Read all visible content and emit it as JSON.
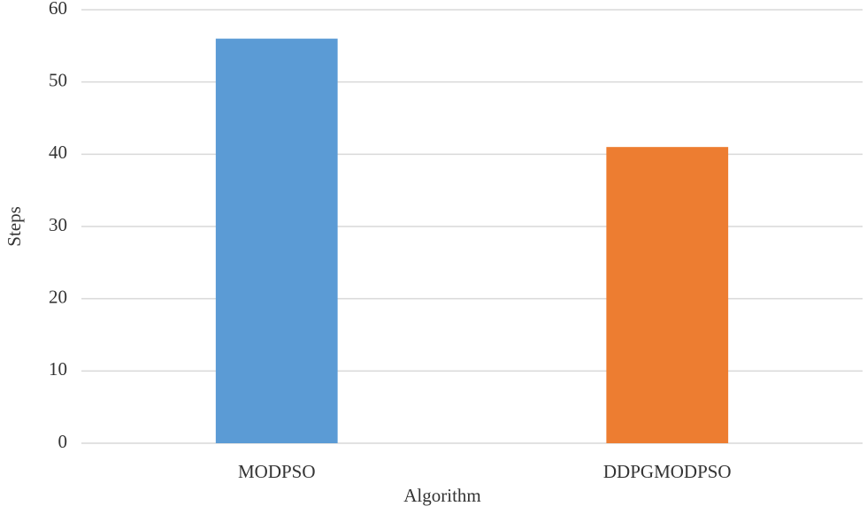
{
  "chart_data": {
    "type": "bar",
    "x_label": "Algorithm",
    "y_label": "Steps",
    "categories": [
      "MODPSO",
      "DDPGMODPSO"
    ],
    "values": [
      56,
      41
    ],
    "colors": [
      "#5b9bd5",
      "#ed7d31"
    ],
    "ylim": [
      0,
      60
    ],
    "yticks": [
      0,
      10,
      20,
      30,
      40,
      50,
      60
    ],
    "grid": true
  }
}
